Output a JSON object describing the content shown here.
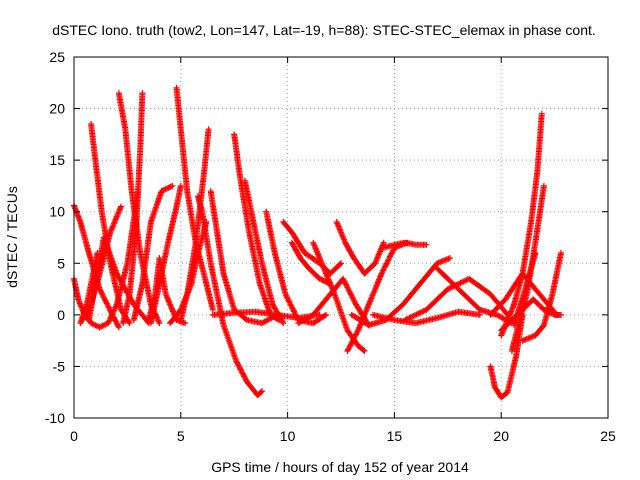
{
  "chart_data": {
    "type": "scatter",
    "title": "dSTEC Iono. truth (tow2, Lon=147, Lat=-19, h=88): STEC-STEC_elemax in phase cont.",
    "xlabel": "GPS time / hours of day 152 of year 2014",
    "ylabel": "dSTEC  / TECUs",
    "xlim": [
      0,
      25
    ],
    "ylim": [
      -10,
      25
    ],
    "xticks": [
      0,
      5,
      10,
      15,
      20,
      25
    ],
    "yticks": [
      -10,
      -5,
      0,
      5,
      10,
      15,
      20,
      25
    ],
    "grid": true,
    "marker": "+",
    "marker_color": "#ff0000",
    "series": [
      {
        "x": [
          0.0,
          0.3,
          0.7,
          1.2,
          1.8,
          2.1
        ],
        "y": [
          10.6,
          9.0,
          6.0,
          2.5,
          0.0,
          -1.2
        ]
      },
      {
        "x": [
          0.0,
          0.2,
          0.5,
          0.8,
          1.2
        ],
        "y": [
          3.5,
          1.5,
          0.0,
          -0.8,
          -1.2
        ]
      },
      {
        "x": [
          0.3,
          0.6,
          0.9,
          1.1
        ],
        "y": [
          -0.8,
          1.0,
          4.0,
          6.0
        ]
      },
      {
        "x": [
          0.8,
          1.0,
          1.3,
          1.7,
          2.2,
          2.6
        ],
        "y": [
          18.5,
          15.0,
          10.0,
          5.0,
          0.5,
          -0.8
        ]
      },
      {
        "x": [
          0.7,
          1.0,
          1.4,
          2.0,
          2.8,
          3.5
        ],
        "y": [
          -0.5,
          3.0,
          7.5,
          4.0,
          1.0,
          -0.8
        ]
      },
      {
        "x": [
          0.4,
          0.8,
          1.2,
          1.7,
          2.2
        ],
        "y": [
          -0.5,
          1.0,
          4.0,
          8.0,
          10.5
        ]
      },
      {
        "x": [
          1.2,
          1.6,
          2.0,
          2.5,
          3.0
        ],
        "y": [
          -1.2,
          -0.8,
          1.0,
          5.0,
          12.0
        ]
      },
      {
        "x": [
          2.1,
          2.4,
          2.7,
          3.1,
          3.6,
          4.0
        ],
        "y": [
          21.5,
          18.0,
          12.0,
          6.0,
          1.0,
          -0.8
        ]
      },
      {
        "x": [
          2.3,
          2.6,
          2.9,
          3.1,
          3.2
        ],
        "y": [
          -0.8,
          2.0,
          8.0,
          16.0,
          21.5
        ]
      },
      {
        "x": [
          2.8,
          3.2,
          3.6,
          4.1,
          4.6
        ],
        "y": [
          -0.5,
          3.0,
          9.0,
          12.0,
          12.5
        ]
      },
      {
        "x": [
          3.5,
          3.8,
          4.0,
          4.3,
          4.8,
          5.2
        ],
        "y": [
          -0.5,
          2.0,
          5.5,
          2.0,
          -0.5,
          -0.8
        ]
      },
      {
        "x": [
          3.6,
          4.0,
          4.4,
          4.8,
          5.0
        ],
        "y": [
          -0.8,
          3.0,
          7.0,
          10.5,
          12.5
        ]
      },
      {
        "x": [
          4.8,
          5.0,
          5.3,
          5.7,
          6.2,
          6.5
        ],
        "y": [
          22.0,
          18.0,
          12.0,
          7.0,
          3.0,
          0.5
        ]
      },
      {
        "x": [
          5.0,
          5.3,
          5.7,
          6.1,
          6.3
        ],
        "y": [
          -0.5,
          2.0,
          7.0,
          14.0,
          18.0
        ]
      },
      {
        "x": [
          4.5,
          5.0,
          5.5,
          5.8,
          6.2
        ],
        "y": [
          -0.8,
          0.5,
          3.0,
          6.0,
          9.0
        ]
      },
      {
        "x": [
          5.8,
          6.0,
          6.4,
          7.0,
          7.6,
          8.1,
          8.6,
          8.8
        ],
        "y": [
          11.5,
          10.0,
          5.0,
          -1.0,
          -4.5,
          -6.5,
          -7.8,
          -7.4
        ]
      },
      {
        "x": [
          6.4,
          6.7,
          7.0,
          7.5,
          8.1,
          8.8,
          9.5
        ],
        "y": [
          12.0,
          8.0,
          4.0,
          0.5,
          -0.5,
          -0.8,
          0.0
        ]
      },
      {
        "x": [
          7.5,
          7.8,
          8.2,
          8.7,
          9.2,
          9.6
        ],
        "y": [
          17.5,
          13.0,
          8.0,
          3.0,
          0.0,
          -0.5
        ]
      },
      {
        "x": [
          8.0,
          8.4,
          8.8,
          9.3,
          9.8
        ],
        "y": [
          13.0,
          9.0,
          5.0,
          1.0,
          -0.8
        ]
      },
      {
        "x": [
          9.0,
          9.4,
          9.9,
          10.5,
          11.2,
          11.8
        ],
        "y": [
          10.0,
          6.0,
          2.0,
          -0.5,
          -0.8,
          0.0
        ]
      },
      {
        "x": [
          6.5,
          7.5,
          8.5,
          9.5,
          10.5,
          11.5
        ],
        "y": [
          0.0,
          0.2,
          0.3,
          0.0,
          -0.3,
          0.0
        ]
      },
      {
        "x": [
          9.8,
          10.2,
          10.8,
          11.5,
          12.0,
          12.5
        ],
        "y": [
          9.0,
          8.0,
          6.0,
          5.0,
          4.0,
          5.0
        ]
      },
      {
        "x": [
          10.2,
          10.6,
          11.0,
          11.5,
          12.0
        ],
        "y": [
          7.0,
          5.5,
          4.5,
          3.5,
          3.0
        ]
      },
      {
        "x": [
          11.2,
          11.6,
          12.2,
          12.8,
          13.3,
          13.6
        ],
        "y": [
          7.0,
          5.0,
          2.0,
          -1.5,
          -3.0,
          -3.5
        ]
      },
      {
        "x": [
          12.3,
          12.7,
          13.1,
          13.6,
          14.1,
          14.5
        ],
        "y": [
          9.0,
          7.0,
          5.5,
          4.0,
          5.0,
          7.0
        ]
      },
      {
        "x": [
          10.5,
          11.2,
          12.0,
          12.6,
          13.2,
          13.8
        ],
        "y": [
          -0.8,
          0.0,
          2.0,
          3.5,
          1.0,
          -1.0
        ]
      },
      {
        "x": [
          12.8,
          13.3,
          13.8,
          14.4,
          15.0,
          15.6
        ],
        "y": [
          -3.5,
          -1.5,
          1.0,
          4.0,
          6.5,
          7.0
        ]
      },
      {
        "x": [
          14.5,
          15.0,
          15.5,
          16.0,
          16.5
        ],
        "y": [
          6.5,
          6.8,
          7.0,
          6.8,
          6.8
        ]
      },
      {
        "x": [
          13.0,
          13.8,
          14.6,
          15.4,
          16.2,
          17.0,
          17.6
        ],
        "y": [
          0.0,
          -1.0,
          -0.5,
          1.0,
          3.0,
          5.0,
          5.5
        ]
      },
      {
        "x": [
          14.0,
          15.0,
          16.0,
          17.0,
          18.0,
          19.0
        ],
        "y": [
          0.0,
          -0.5,
          -0.8,
          -0.3,
          0.3,
          0.0
        ]
      },
      {
        "x": [
          15.5,
          16.5,
          17.5,
          18.5,
          19.5,
          20.3
        ],
        "y": [
          -0.5,
          0.5,
          2.5,
          3.5,
          2.0,
          0.0
        ]
      },
      {
        "x": [
          17.0,
          18.0,
          19.0,
          19.8,
          20.5
        ],
        "y": [
          4.5,
          2.5,
          0.5,
          0.0,
          -0.8
        ]
      },
      {
        "x": [
          19.5,
          19.7,
          20.0,
          20.3,
          20.7,
          21.0
        ],
        "y": [
          -5.0,
          -7.0,
          -8.0,
          -7.5,
          -4.0,
          0.0
        ]
      },
      {
        "x": [
          20.0,
          20.3,
          20.6,
          21.0,
          21.4,
          21.7,
          21.9
        ],
        "y": [
          -2.0,
          -0.5,
          1.0,
          4.0,
          9.0,
          14.0,
          19.5
        ]
      },
      {
        "x": [
          20.5,
          20.8,
          21.2,
          21.6,
          22.0
        ],
        "y": [
          -3.5,
          -1.0,
          2.0,
          7.0,
          12.5
        ]
      },
      {
        "x": [
          20.0,
          20.5,
          21.0,
          21.5,
          22.0,
          22.5,
          22.8
        ],
        "y": [
          -1.5,
          -0.5,
          0.5,
          1.5,
          0.5,
          0.0,
          0.0
        ]
      },
      {
        "x": [
          21.0,
          21.6,
          22.0,
          22.4,
          22.8
        ],
        "y": [
          -2.5,
          -2.0,
          -1.0,
          2.0,
          6.0
        ]
      },
      {
        "x": [
          19.5,
          20.2,
          21.0,
          21.8,
          22.6
        ],
        "y": [
          0.0,
          1.5,
          4.0,
          2.0,
          0.0
        ]
      },
      {
        "x": [
          20.6,
          20.9,
          21.2,
          21.6
        ],
        "y": [
          -1.0,
          1.0,
          3.0,
          6.0
        ]
      }
    ]
  }
}
